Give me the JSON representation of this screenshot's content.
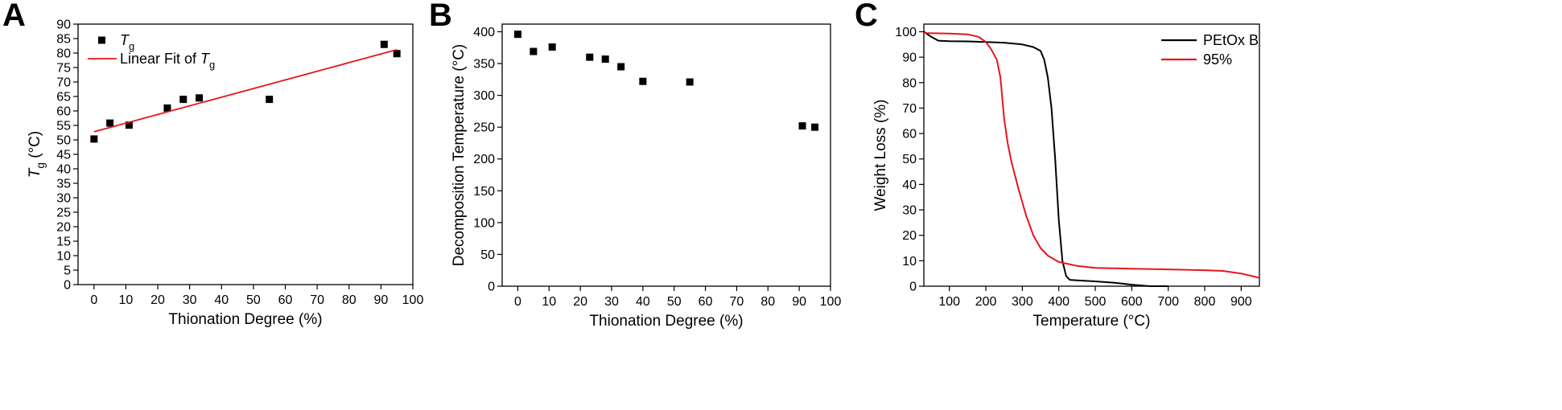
{
  "colors": {
    "axis": "#000000",
    "marker": "#000000",
    "fit_line": "#e8141b",
    "series_black": "#000000",
    "series_red": "#e8141b"
  },
  "chart_data": [
    {
      "panel": "A",
      "type": "scatter",
      "xlabel": "Thionation Degree (%)",
      "ylabel": {
        "italic": "T",
        "sub": "g",
        "unit": " (°C)"
      },
      "xlim": [
        -5,
        100
      ],
      "ylim": [
        0,
        90
      ],
      "xticks": [
        0,
        10,
        20,
        30,
        40,
        50,
        60,
        70,
        80,
        90,
        100
      ],
      "yticks": [
        0,
        5,
        10,
        15,
        20,
        25,
        30,
        35,
        40,
        45,
        50,
        55,
        60,
        65,
        70,
        75,
        80,
        85,
        90
      ],
      "grid": false,
      "legend_position": "top-left",
      "series": [
        {
          "name": "Tg",
          "legend": {
            "italic": "T",
            "sub": "g",
            "prefix": ""
          },
          "kind": "points",
          "x": [
            0,
            5,
            11,
            23,
            28,
            33,
            55,
            91,
            95
          ],
          "y": [
            50.3,
            55.8,
            55.1,
            61,
            64,
            64.5,
            64,
            83,
            79.8
          ]
        },
        {
          "name": "Linear Fit of Tg",
          "legend": {
            "prefix": "Linear Fit of ",
            "italic": "T",
            "sub": "g"
          },
          "kind": "line",
          "x": [
            0,
            95
          ],
          "y": [
            52.8,
            81.2
          ]
        }
      ]
    },
    {
      "panel": "B",
      "type": "scatter",
      "xlabel": "Thionation Degree (%)",
      "ylabel": "Decomposition Temperature (°C)",
      "xlim": [
        -5,
        100
      ],
      "ylim": [
        0,
        412
      ],
      "xticks": [
        0,
        10,
        20,
        30,
        40,
        50,
        60,
        70,
        80,
        90,
        100
      ],
      "yticks": [
        0,
        50,
        100,
        150,
        200,
        250,
        300,
        350,
        400
      ],
      "grid": false,
      "series": [
        {
          "kind": "points",
          "x": [
            0,
            5,
            11,
            23,
            28,
            33,
            40,
            55,
            91,
            95
          ],
          "y": [
            396,
            369,
            376,
            360,
            357,
            345,
            322,
            321,
            252,
            250
          ]
        }
      ]
    },
    {
      "panel": "C",
      "type": "line",
      "xlabel": "Temperature (°C)",
      "ylabel": "Weight Loss (%)",
      "xlim": [
        30,
        950
      ],
      "ylim": [
        0,
        103
      ],
      "xticks": [
        100,
        200,
        300,
        400,
        500,
        600,
        700,
        800,
        900
      ],
      "yticks": [
        0,
        10,
        20,
        30,
        40,
        50,
        60,
        70,
        80,
        90,
        100
      ],
      "grid": false,
      "legend_position": "top-right",
      "series": [
        {
          "name": "PEtOx B",
          "color": "#000000",
          "x": [
            30,
            50,
            70,
            100,
            150,
            200,
            250,
            300,
            330,
            350,
            360,
            370,
            380,
            390,
            400,
            410,
            420,
            430,
            450,
            500,
            550,
            600,
            650,
            700
          ],
          "y": [
            100,
            98,
            96.5,
            96.3,
            96.2,
            96,
            95.7,
            95,
            94,
            92.5,
            89,
            82,
            70,
            50,
            26,
            10,
            4,
            2.5,
            2.3,
            1.9,
            1.4,
            0.6,
            0,
            0
          ]
        },
        {
          "name": "95%",
          "color": "#e8141b",
          "x": [
            30,
            100,
            150,
            180,
            200,
            215,
            230,
            240,
            250,
            260,
            270,
            290,
            310,
            330,
            350,
            370,
            400,
            450,
            500,
            600,
            700,
            800,
            850,
            900,
            950
          ],
          "y": [
            99.5,
            99.3,
            99,
            98,
            96,
            93,
            89,
            82,
            66,
            56,
            49,
            38,
            28,
            20,
            15,
            12,
            9.5,
            8,
            7.2,
            6.9,
            6.6,
            6.3,
            6,
            5,
            3.3
          ]
        }
      ]
    }
  ]
}
